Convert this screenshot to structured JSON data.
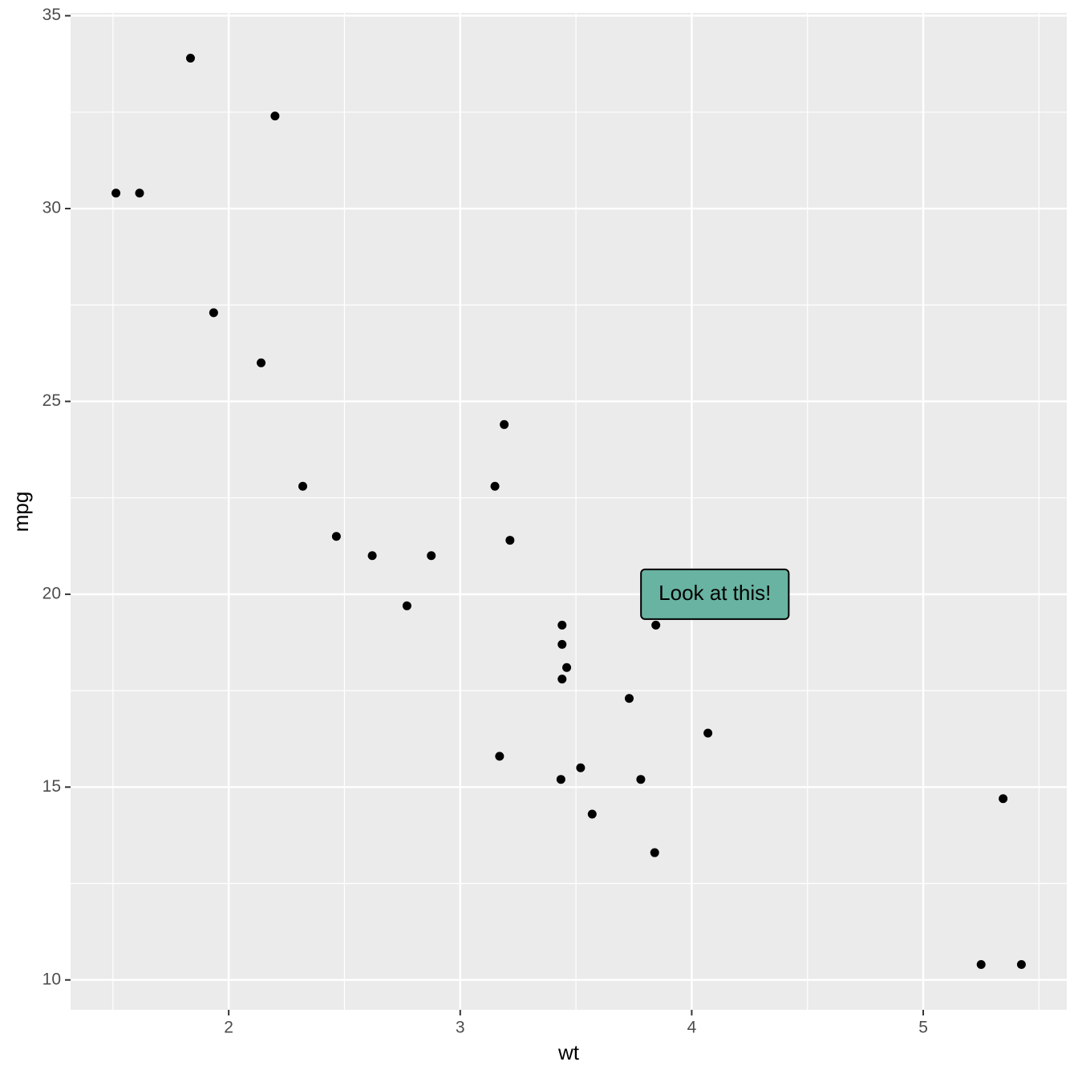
{
  "chart_data": {
    "type": "scatter",
    "x_label": "wt",
    "y_label": "mpg",
    "series": [
      {
        "color": "#000000",
        "x": [
          2.62,
          2.875,
          2.32,
          3.215,
          3.44,
          3.46,
          3.57,
          3.19,
          3.15,
          3.44,
          3.44,
          4.07,
          3.73,
          3.78,
          5.25,
          5.424,
          5.345,
          2.2,
          1.615,
          1.835,
          2.465,
          3.52,
          3.435,
          3.84,
          3.845,
          1.935,
          2.14,
          1.513,
          3.17,
          2.77
        ],
        "values": [
          21.0,
          21.0,
          22.8,
          21.4,
          18.7,
          18.1,
          14.3,
          24.4,
          22.8,
          19.2,
          17.8,
          16.4,
          17.3,
          15.2,
          10.4,
          10.4,
          14.7,
          32.4,
          30.4,
          33.9,
          21.5,
          15.5,
          15.2,
          13.3,
          19.2,
          27.3,
          26.0,
          30.4,
          15.8,
          19.7
        ]
      }
    ],
    "xlim": [
      1.317,
      5.62
    ],
    "ylim": [
      9.225,
      35.075
    ],
    "xticks": [
      2,
      3,
      4,
      5
    ],
    "yticks": [
      10,
      15,
      20,
      25,
      30,
      35
    ],
    "x_minor_breaks": [
      1.5,
      2.5,
      3.5,
      4.5,
      5.5
    ],
    "y_minor_breaks": [
      12.5,
      17.5,
      22.5,
      27.5,
      32.5
    ],
    "grid": true,
    "panel_color": "#ebebeb",
    "annotations": [
      {
        "text": "Look at this!",
        "x": 4.1,
        "y": 20,
        "fill": "#69b3a2"
      }
    ]
  }
}
